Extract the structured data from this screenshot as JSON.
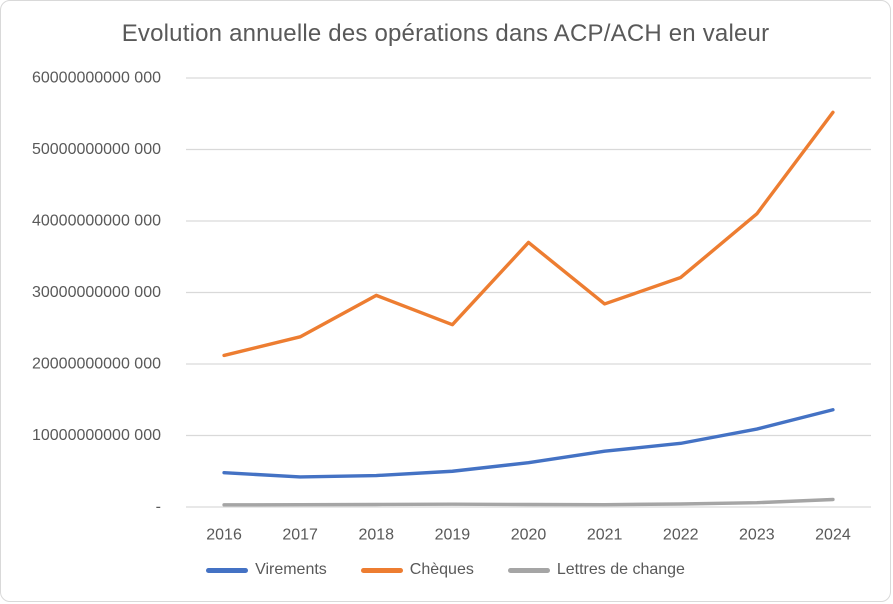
{
  "chart_data": {
    "type": "line",
    "title": "Evolution annuelle des opérations dans ACP/ACH en valeur",
    "xlabel": "",
    "ylabel": "",
    "categories": [
      "2016",
      "2017",
      "2018",
      "2019",
      "2020",
      "2021",
      "2022",
      "2023",
      "2024"
    ],
    "series": [
      {
        "name": "Virements",
        "color": "#4472C4",
        "values": [
          4800000000000,
          4200000000000,
          4400000000000,
          5000000000000,
          6200000000000,
          7800000000000,
          8900000000000,
          10900000000000,
          13600000000000
        ]
      },
      {
        "name": "Chèques",
        "color": "#ED7D31",
        "values": [
          21200000000000,
          23800000000000,
          29600000000000,
          25500000000000,
          37000000000000,
          28400000000000,
          32100000000000,
          41000000000000,
          55200000000000
        ]
      },
      {
        "name": "Lettres de change",
        "color": "#A5A5A5",
        "values": [
          300000000000,
          320000000000,
          350000000000,
          400000000000,
          350000000000,
          330000000000,
          420000000000,
          600000000000,
          1050000000000
        ]
      }
    ],
    "y_ticks": [
      {
        "label": "-",
        "value": 0
      },
      {
        "label": "10000000000 000",
        "value": 10000000000000
      },
      {
        "label": "20000000000 000",
        "value": 20000000000000
      },
      {
        "label": "30000000000 000",
        "value": 30000000000000
      },
      {
        "label": "40000000000 000",
        "value": 40000000000000
      },
      {
        "label": "50000000000 000",
        "value": 50000000000000
      },
      {
        "label": "60000000000 000",
        "value": 60000000000000
      }
    ],
    "ylim": [
      0,
      60000000000000
    ],
    "grid": true,
    "legend_position": "bottom"
  },
  "styles": {
    "text_color": "#595959",
    "gridline_color": "#D9D9D9",
    "background": "#FFFFFF",
    "border_color": "#D9D9D9"
  }
}
